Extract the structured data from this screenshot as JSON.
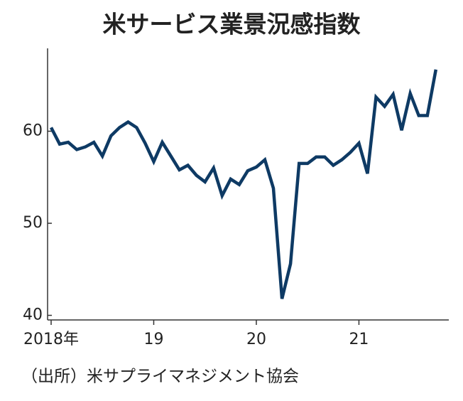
{
  "chart_data": {
    "type": "line",
    "title": "米サービス業景況感指数",
    "source": "（出所）米サプライマネジメント協会",
    "categories": [
      "2018年",
      null,
      null,
      null,
      null,
      null,
      null,
      null,
      null,
      null,
      null,
      null,
      "19",
      null,
      null,
      null,
      null,
      null,
      null,
      null,
      null,
      null,
      null,
      null,
      "20",
      null,
      null,
      null,
      null,
      null,
      null,
      null,
      null,
      null,
      null,
      null,
      "21",
      null,
      null,
      null,
      null,
      null,
      null,
      null,
      null,
      null
    ],
    "values": [
      60.4,
      58.6,
      58.8,
      58.0,
      58.3,
      58.8,
      57.3,
      59.5,
      60.4,
      61.0,
      60.4,
      58.7,
      56.7,
      58.8,
      57.3,
      55.8,
      56.3,
      55.2,
      54.5,
      56.0,
      53.0,
      54.8,
      54.2,
      55.7,
      56.1,
      56.9,
      53.8,
      41.8,
      45.6,
      56.5,
      56.5,
      57.2,
      57.2,
      56.3,
      56.9,
      57.7,
      58.7,
      55.4,
      63.7,
      62.7,
      64.0,
      60.1,
      64.1,
      61.7,
      61.7,
      66.7
    ],
    "color": "#0e3a64",
    "ylim": [
      39.5,
      69
    ],
    "yticks": [
      40,
      50,
      60
    ],
    "grid": false
  }
}
